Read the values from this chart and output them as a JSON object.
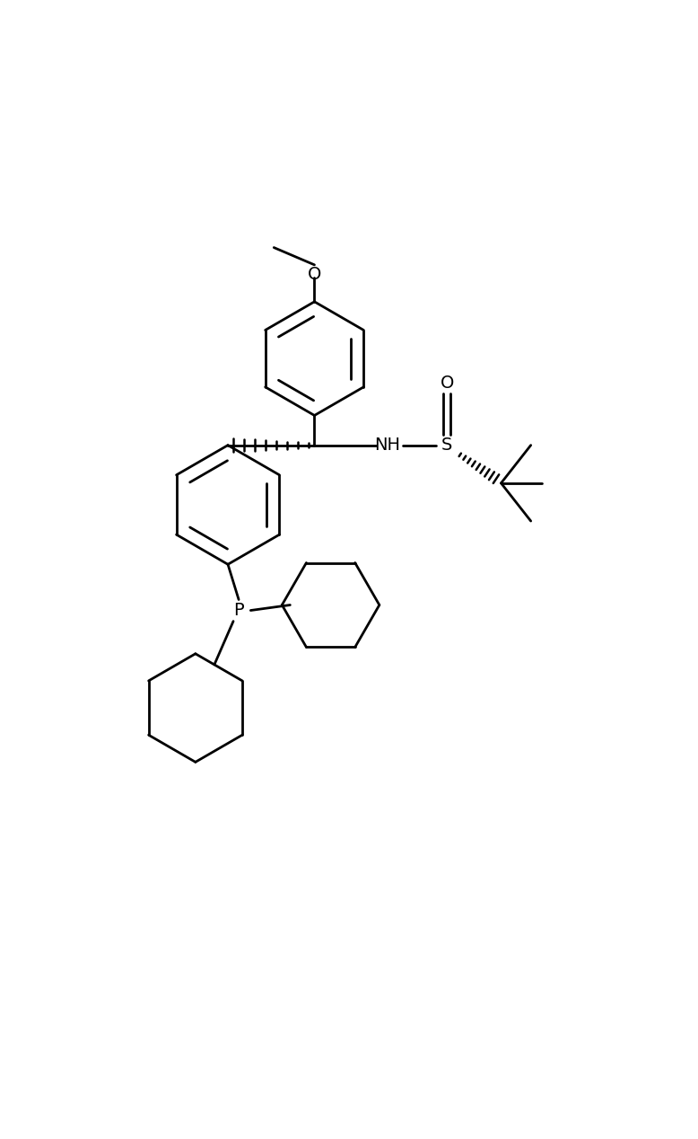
{
  "background_color": "#ffffff",
  "line_color": "#000000",
  "line_width": 2.0,
  "figsize": [
    7.78,
    12.68
  ],
  "dpi": 100,
  "xlim": [
    0,
    10
  ],
  "ylim": [
    0,
    16
  ]
}
